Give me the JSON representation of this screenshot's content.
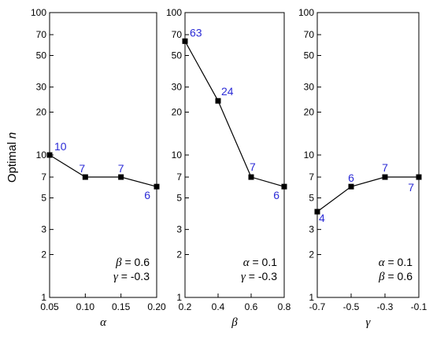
{
  "colors": {
    "line": "#000000",
    "marker": "#000000",
    "data_label": "#2b2bd6",
    "frame": "#000000"
  },
  "chart_data": [
    {
      "type": "line",
      "ylabel": "Optimal n",
      "xlabel": "α",
      "y_scale": "log",
      "ylim": [
        1,
        100
      ],
      "y_ticks": [
        1,
        2,
        3,
        5,
        7,
        10,
        20,
        30,
        50,
        70,
        100
      ],
      "xlim": [
        0.05,
        0.2
      ],
      "x_ticks": [
        "0.05",
        "0.10",
        "0.15",
        "0.20"
      ],
      "x": [
        0.05,
        0.1,
        0.15,
        0.2
      ],
      "values": [
        10,
        7,
        7,
        6
      ],
      "data_labels": [
        "10",
        "7",
        "7",
        "6"
      ],
      "annotation": [
        "β = 0.6",
        "γ = -0.3"
      ]
    },
    {
      "type": "line",
      "xlabel": "β",
      "y_scale": "log",
      "ylim": [
        1,
        100
      ],
      "y_ticks": [
        1,
        2,
        3,
        5,
        7,
        10,
        20,
        30,
        50,
        70,
        100
      ],
      "xlim": [
        0.2,
        0.8
      ],
      "x_ticks": [
        "0.2",
        "0.4",
        "0.6",
        "0.8"
      ],
      "x": [
        0.2,
        0.4,
        0.6,
        0.8
      ],
      "values": [
        63,
        24,
        7,
        6
      ],
      "data_labels": [
        "63",
        "24",
        "7",
        "6"
      ],
      "annotation": [
        "α = 0.1",
        "γ = -0.3"
      ]
    },
    {
      "type": "line",
      "xlabel": "γ",
      "y_scale": "log",
      "ylim": [
        1,
        100
      ],
      "y_ticks": [
        1,
        2,
        3,
        5,
        7,
        10,
        20,
        30,
        50,
        70,
        100
      ],
      "xlim": [
        -0.7,
        -0.1
      ],
      "x_ticks": [
        "-0.7",
        "-0.5",
        "-0.3",
        "-0.1"
      ],
      "x": [
        -0.7,
        -0.5,
        -0.3,
        -0.1
      ],
      "values": [
        4,
        6,
        7,
        7
      ],
      "data_labels": [
        "4",
        "6",
        "7",
        "7"
      ],
      "annotation": [
        "α = 0.1",
        "β = 0.6"
      ]
    }
  ]
}
